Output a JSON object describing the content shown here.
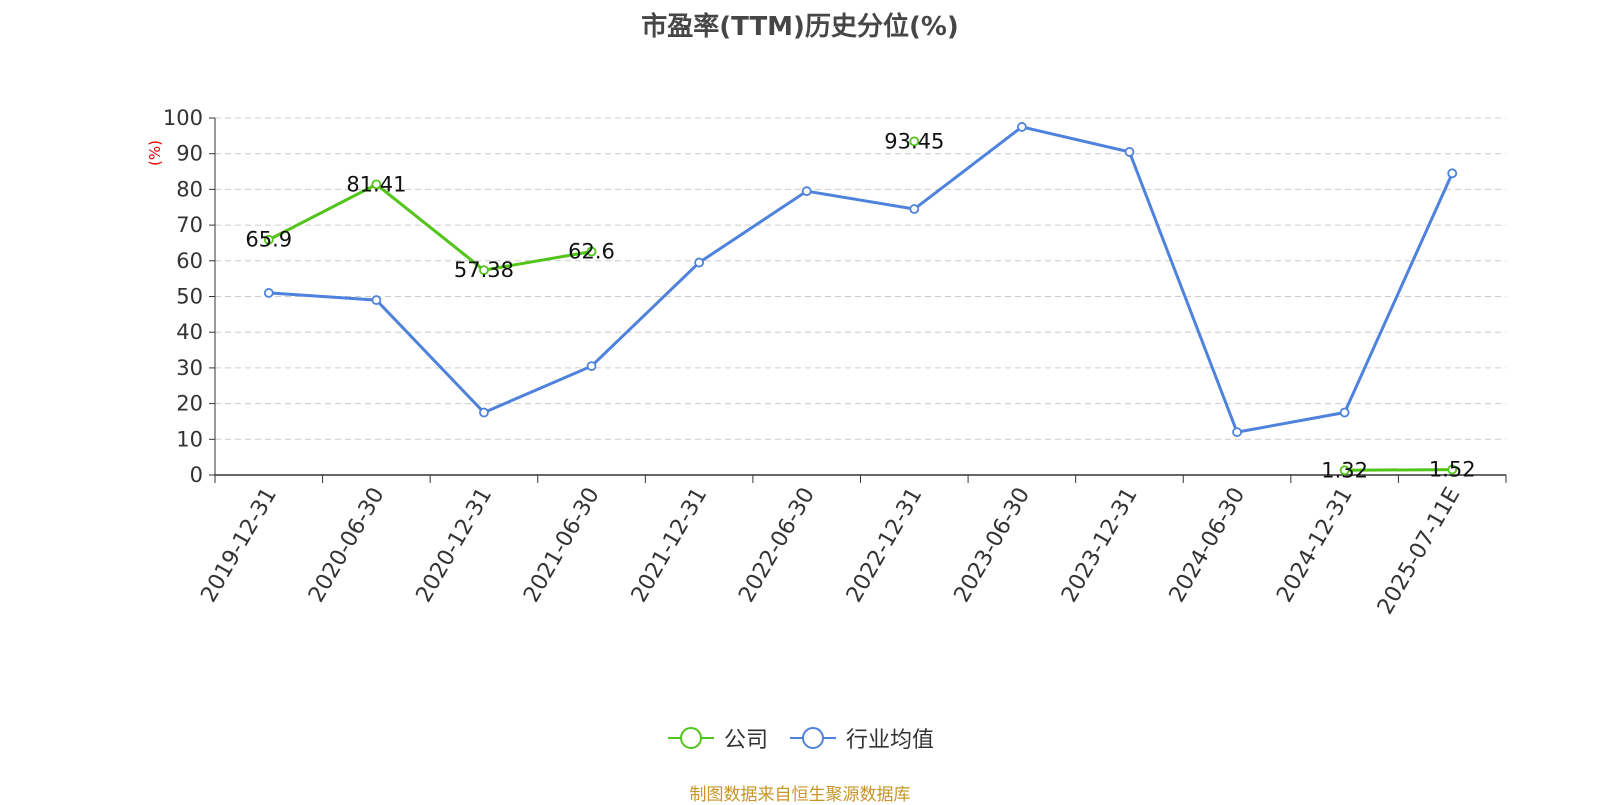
{
  "chart_data": {
    "type": "line",
    "title": "市盈率(TTM)历史分位(%)",
    "ylabel": "(%)",
    "xlabel": "",
    "ylim": [
      0,
      100
    ],
    "yticks": [
      0,
      10,
      20,
      30,
      40,
      50,
      60,
      70,
      80,
      90,
      100
    ],
    "grid": true,
    "legend_position": "bottom",
    "categories": [
      "2019-12-31",
      "2020-06-30",
      "2020-12-31",
      "2021-06-30",
      "2021-12-31",
      "2022-06-30",
      "2022-12-31",
      "2023-06-30",
      "2023-12-31",
      "2024-06-30",
      "2024-12-31",
      "2025-07-11E"
    ],
    "series": [
      {
        "name": "公司",
        "color": "#52c41a",
        "values": [
          65.9,
          81.41,
          57.38,
          62.6,
          null,
          null,
          93.45,
          null,
          null,
          null,
          1.32,
          1.52
        ],
        "labels": [
          "65.9",
          "81.41",
          "57.38",
          "62.6",
          "",
          "",
          "93.45",
          "",
          "",
          "",
          "1.32",
          "1.52"
        ]
      },
      {
        "name": "行业均值",
        "color": "#4e82dd",
        "values": [
          51,
          49,
          17.5,
          30.5,
          59.5,
          79.5,
          74.5,
          97.5,
          90.5,
          12,
          17.5,
          84.5
        ],
        "labels": []
      }
    ],
    "source_note": "制图数据来自恒生聚源数据库",
    "source_color": "#c8952a",
    "ylabel_color": "#e60000"
  }
}
